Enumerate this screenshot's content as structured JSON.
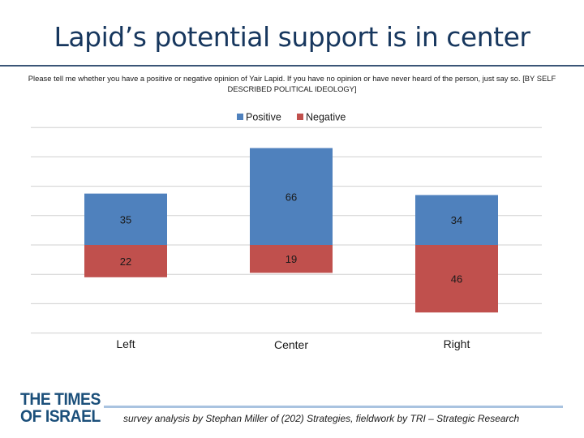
{
  "slide": {
    "title": "Lapid’s potential support is in center",
    "subtitle": "Please tell me whether you have a positive or negative opinion of Yair Lapid. If you have no opinion or have never heard of the person, just say so. [BY SELF DESCRIBED POLITICAL IDEOLOGY]",
    "logo_line1": "THE TIMES",
    "logo_line2": "OF ISRAEL",
    "credit": "survey analysis by Stephan Miller of (202) Strategies, fieldwork by TRI – Strategic Research"
  },
  "colors": {
    "title": "#17375e",
    "positive": "#4f81bd",
    "negative": "#c0504d",
    "grid": "#d0d0d0"
  },
  "chart_data": {
    "type": "bar",
    "stacked": "diverging",
    "categories": [
      "Left",
      "Center",
      "Right"
    ],
    "series": [
      {
        "name": "Positive",
        "values": [
          35,
          66,
          34
        ]
      },
      {
        "name": "Negative",
        "values": [
          22,
          19,
          46
        ]
      }
    ],
    "ylim": [
      -60,
      80
    ],
    "grid": true,
    "legend": "top-center"
  }
}
